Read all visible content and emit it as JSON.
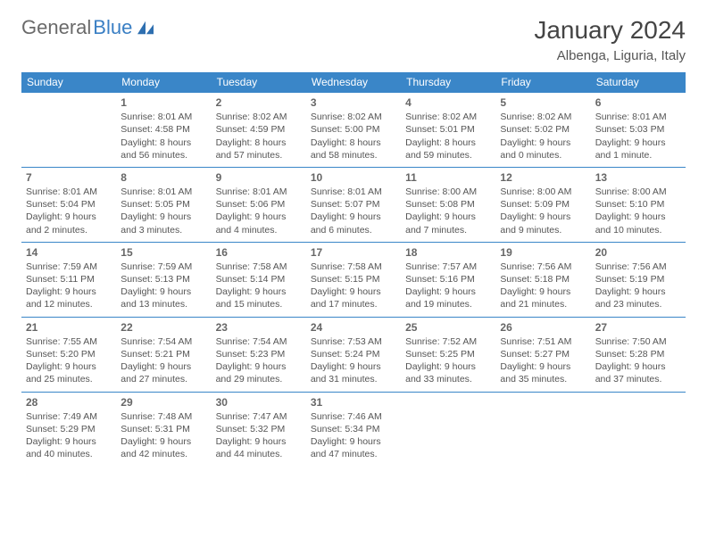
{
  "logo": {
    "part1": "General",
    "part2": "Blue"
  },
  "title": "January 2024",
  "location": "Albenga, Liguria, Italy",
  "colors": {
    "header_bg": "#3a86c8",
    "header_text": "#ffffff",
    "border": "#3a86c8",
    "body_text": "#555555",
    "logo_gray": "#6a6a6a",
    "logo_blue": "#3a7fc4"
  },
  "weekdays": [
    "Sunday",
    "Monday",
    "Tuesday",
    "Wednesday",
    "Thursday",
    "Friday",
    "Saturday"
  ],
  "weeks": [
    [
      null,
      {
        "n": "1",
        "sr": "8:01 AM",
        "ss": "4:58 PM",
        "dl": "8 hours and 56 minutes."
      },
      {
        "n": "2",
        "sr": "8:02 AM",
        "ss": "4:59 PM",
        "dl": "8 hours and 57 minutes."
      },
      {
        "n": "3",
        "sr": "8:02 AM",
        "ss": "5:00 PM",
        "dl": "8 hours and 58 minutes."
      },
      {
        "n": "4",
        "sr": "8:02 AM",
        "ss": "5:01 PM",
        "dl": "8 hours and 59 minutes."
      },
      {
        "n": "5",
        "sr": "8:02 AM",
        "ss": "5:02 PM",
        "dl": "9 hours and 0 minutes."
      },
      {
        "n": "6",
        "sr": "8:01 AM",
        "ss": "5:03 PM",
        "dl": "9 hours and 1 minute."
      }
    ],
    [
      {
        "n": "7",
        "sr": "8:01 AM",
        "ss": "5:04 PM",
        "dl": "9 hours and 2 minutes."
      },
      {
        "n": "8",
        "sr": "8:01 AM",
        "ss": "5:05 PM",
        "dl": "9 hours and 3 minutes."
      },
      {
        "n": "9",
        "sr": "8:01 AM",
        "ss": "5:06 PM",
        "dl": "9 hours and 4 minutes."
      },
      {
        "n": "10",
        "sr": "8:01 AM",
        "ss": "5:07 PM",
        "dl": "9 hours and 6 minutes."
      },
      {
        "n": "11",
        "sr": "8:00 AM",
        "ss": "5:08 PM",
        "dl": "9 hours and 7 minutes."
      },
      {
        "n": "12",
        "sr": "8:00 AM",
        "ss": "5:09 PM",
        "dl": "9 hours and 9 minutes."
      },
      {
        "n": "13",
        "sr": "8:00 AM",
        "ss": "5:10 PM",
        "dl": "9 hours and 10 minutes."
      }
    ],
    [
      {
        "n": "14",
        "sr": "7:59 AM",
        "ss": "5:11 PM",
        "dl": "9 hours and 12 minutes."
      },
      {
        "n": "15",
        "sr": "7:59 AM",
        "ss": "5:13 PM",
        "dl": "9 hours and 13 minutes."
      },
      {
        "n": "16",
        "sr": "7:58 AM",
        "ss": "5:14 PM",
        "dl": "9 hours and 15 minutes."
      },
      {
        "n": "17",
        "sr": "7:58 AM",
        "ss": "5:15 PM",
        "dl": "9 hours and 17 minutes."
      },
      {
        "n": "18",
        "sr": "7:57 AM",
        "ss": "5:16 PM",
        "dl": "9 hours and 19 minutes."
      },
      {
        "n": "19",
        "sr": "7:56 AM",
        "ss": "5:18 PM",
        "dl": "9 hours and 21 minutes."
      },
      {
        "n": "20",
        "sr": "7:56 AM",
        "ss": "5:19 PM",
        "dl": "9 hours and 23 minutes."
      }
    ],
    [
      {
        "n": "21",
        "sr": "7:55 AM",
        "ss": "5:20 PM",
        "dl": "9 hours and 25 minutes."
      },
      {
        "n": "22",
        "sr": "7:54 AM",
        "ss": "5:21 PM",
        "dl": "9 hours and 27 minutes."
      },
      {
        "n": "23",
        "sr": "7:54 AM",
        "ss": "5:23 PM",
        "dl": "9 hours and 29 minutes."
      },
      {
        "n": "24",
        "sr": "7:53 AM",
        "ss": "5:24 PM",
        "dl": "9 hours and 31 minutes."
      },
      {
        "n": "25",
        "sr": "7:52 AM",
        "ss": "5:25 PM",
        "dl": "9 hours and 33 minutes."
      },
      {
        "n": "26",
        "sr": "7:51 AM",
        "ss": "5:27 PM",
        "dl": "9 hours and 35 minutes."
      },
      {
        "n": "27",
        "sr": "7:50 AM",
        "ss": "5:28 PM",
        "dl": "9 hours and 37 minutes."
      }
    ],
    [
      {
        "n": "28",
        "sr": "7:49 AM",
        "ss": "5:29 PM",
        "dl": "9 hours and 40 minutes."
      },
      {
        "n": "29",
        "sr": "7:48 AM",
        "ss": "5:31 PM",
        "dl": "9 hours and 42 minutes."
      },
      {
        "n": "30",
        "sr": "7:47 AM",
        "ss": "5:32 PM",
        "dl": "9 hours and 44 minutes."
      },
      {
        "n": "31",
        "sr": "7:46 AM",
        "ss": "5:34 PM",
        "dl": "9 hours and 47 minutes."
      },
      null,
      null,
      null
    ]
  ],
  "labels": {
    "sunrise": "Sunrise:",
    "sunset": "Sunset:",
    "daylight": "Daylight:"
  }
}
